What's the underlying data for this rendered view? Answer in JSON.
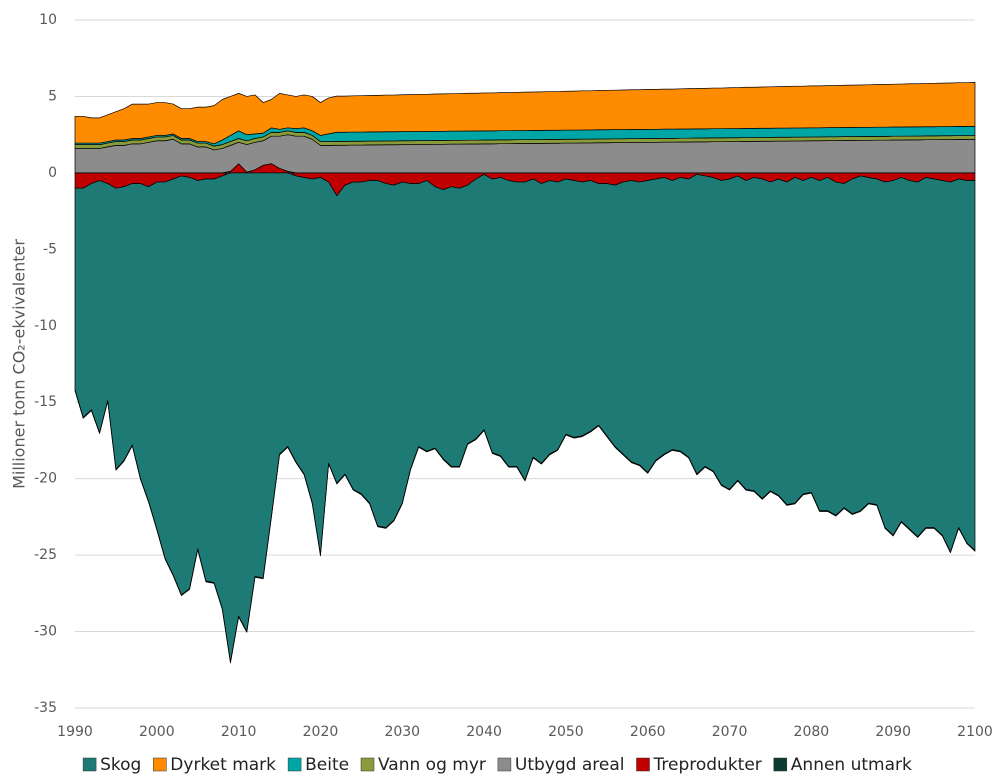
{
  "chart_data": {
    "type": "stacked_area",
    "y_label": "Millioner tonn CO₂-ekvivalenter",
    "x": [
      1990,
      1991,
      1992,
      1993,
      1994,
      1995,
      1996,
      1997,
      1998,
      1999,
      2000,
      2001,
      2002,
      2003,
      2004,
      2005,
      2006,
      2007,
      2008,
      2009,
      2010,
      2011,
      2012,
      2013,
      2014,
      2015,
      2016,
      2017,
      2018,
      2019,
      2020,
      2021,
      2022,
      2023,
      2024,
      2025,
      2026,
      2027,
      2028,
      2029,
      2030,
      2031,
      2032,
      2033,
      2034,
      2035,
      2036,
      2037,
      2038,
      2039,
      2040,
      2041,
      2042,
      2043,
      2044,
      2045,
      2046,
      2047,
      2048,
      2049,
      2050,
      2051,
      2052,
      2053,
      2054,
      2055,
      2056,
      2057,
      2058,
      2059,
      2060,
      2061,
      2062,
      2063,
      2064,
      2065,
      2066,
      2067,
      2068,
      2069,
      2070,
      2071,
      2072,
      2073,
      2074,
      2075,
      2076,
      2077,
      2078,
      2079,
      2080,
      2081,
      2082,
      2083,
      2084,
      2085,
      2086,
      2087,
      2088,
      2089,
      2090,
      2091,
      2092,
      2093,
      2094,
      2095,
      2096,
      2097,
      2098,
      2099,
      2100
    ],
    "xlim": [
      1990,
      2100
    ],
    "xticks": [
      1990,
      2000,
      2010,
      2020,
      2030,
      2040,
      2050,
      2060,
      2070,
      2080,
      2090,
      2100
    ],
    "ylim": [
      -35,
      10
    ],
    "yticks": [
      -35,
      -30,
      -25,
      -20,
      -15,
      -10,
      -5,
      0,
      5,
      10
    ],
    "grid": true,
    "series": [
      {
        "name": "Skog",
        "color": "#1d7a75",
        "values": [
          -13.2,
          -15.0,
          -14.8,
          -16.5,
          -14.2,
          -18.4,
          -17.9,
          -17.1,
          -19.3,
          -20.6,
          -22.7,
          -24.6,
          -25.9,
          -27.4,
          -26.9,
          -24.1,
          -26.3,
          -26.4,
          -28.3,
          -32.0,
          -29.0,
          -30.0,
          -26.4,
          -26.5,
          -22.5,
          -18.4,
          -17.9,
          -18.7,
          -19.4,
          -21.2,
          -24.7,
          -18.4,
          -18.8,
          -18.9,
          -20.1,
          -20.4,
          -21.1,
          -22.6,
          -22.5,
          -21.9,
          -21.0,
          -18.7,
          -17.2,
          -17.7,
          -17.1,
          -17.6,
          -18.3,
          -18.2,
          -16.9,
          -17.0,
          -16.7,
          -17.9,
          -18.2,
          -18.7,
          -18.6,
          -19.5,
          -18.2,
          -18.3,
          -17.9,
          -17.5,
          -16.7,
          -16.8,
          -16.6,
          -16.4,
          -15.8,
          -16.5,
          -17.1,
          -17.8,
          -18.4,
          -18.5,
          -19.1,
          -18.4,
          -18.1,
          -17.6,
          -17.9,
          -18.2,
          -19.6,
          -19.0,
          -19.2,
          -19.9,
          -20.3,
          -19.9,
          -20.2,
          -20.5,
          -20.9,
          -20.2,
          -20.7,
          -21.1,
          -21.3,
          -20.5,
          -20.6,
          -21.6,
          -21.8,
          -21.8,
          -21.2,
          -21.9,
          -21.9,
          -21.3,
          -21.3,
          -22.6,
          -23.2,
          -22.5,
          -22.8,
          -23.2,
          -22.9,
          -22.8,
          -23.2,
          -24.2,
          -22.8,
          -23.7,
          -24.2
        ]
      },
      {
        "name": "Dyrket mark",
        "color": "#ff8b00",
        "values": [
          1.75,
          1.75,
          1.65,
          1.65,
          1.75,
          1.85,
          2.05,
          2.25,
          2.25,
          2.15,
          2.15,
          2.15,
          1.95,
          1.95,
          1.95,
          2.25,
          2.25,
          2.5,
          2.65,
          2.55,
          2.45,
          2.5,
          2.55,
          2.0,
          1.85,
          2.35,
          2.15,
          2.1,
          2.15,
          2.25,
          2.15,
          2.35,
          2.36,
          2.36,
          2.37,
          2.38,
          2.38,
          2.39,
          2.4,
          2.4,
          2.41,
          2.42,
          2.43,
          2.43,
          2.44,
          2.45,
          2.45,
          2.46,
          2.47,
          2.47,
          2.48,
          2.48,
          2.49,
          2.49,
          2.5,
          2.51,
          2.51,
          2.52,
          2.53,
          2.53,
          2.54,
          2.55,
          2.56,
          2.56,
          2.57,
          2.58,
          2.58,
          2.59,
          2.6,
          2.6,
          2.61,
          2.61,
          2.62,
          2.62,
          2.63,
          2.64,
          2.64,
          2.65,
          2.66,
          2.66,
          2.67,
          2.68,
          2.69,
          2.69,
          2.7,
          2.71,
          2.71,
          2.72,
          2.73,
          2.73,
          2.74,
          2.74,
          2.75,
          2.75,
          2.76,
          2.77,
          2.77,
          2.78,
          2.79,
          2.79,
          2.8,
          2.81,
          2.82,
          2.82,
          2.83,
          2.84,
          2.84,
          2.85,
          2.86,
          2.86,
          2.87
        ]
      },
      {
        "name": "Beite",
        "color": "#00a6a6",
        "values": [
          0.1,
          0.1,
          0.1,
          0.1,
          0.1,
          0.1,
          0.1,
          0.1,
          0.1,
          0.1,
          0.1,
          0.1,
          0.1,
          0.1,
          0.1,
          0.1,
          0.1,
          0.15,
          0.3,
          0.4,
          0.5,
          0.4,
          0.3,
          0.25,
          0.3,
          0.2,
          0.2,
          0.25,
          0.3,
          0.3,
          0.4,
          0.5,
          0.6,
          0.6,
          0.6,
          0.6,
          0.6,
          0.6,
          0.6,
          0.6,
          0.6,
          0.6,
          0.6,
          0.6,
          0.6,
          0.6,
          0.6,
          0.6,
          0.6,
          0.6,
          0.6,
          0.6,
          0.6,
          0.6,
          0.6,
          0.6,
          0.6,
          0.6,
          0.6,
          0.6,
          0.6,
          0.6,
          0.6,
          0.6,
          0.6,
          0.6,
          0.6,
          0.6,
          0.6,
          0.6,
          0.6,
          0.6,
          0.6,
          0.6,
          0.6,
          0.6,
          0.6,
          0.6,
          0.6,
          0.6,
          0.6,
          0.6,
          0.6,
          0.6,
          0.6,
          0.6,
          0.6,
          0.6,
          0.6,
          0.6,
          0.6,
          0.6,
          0.6,
          0.6,
          0.6,
          0.6,
          0.6,
          0.6,
          0.6,
          0.6,
          0.6,
          0.6,
          0.6,
          0.6,
          0.6,
          0.6,
          0.6,
          0.6,
          0.6,
          0.6,
          0.6
        ]
      },
      {
        "name": "Vann og myr",
        "color": "#8a9b3b",
        "values": [
          0.25,
          0.25,
          0.25,
          0.25,
          0.25,
          0.25,
          0.25,
          0.25,
          0.25,
          0.25,
          0.25,
          0.25,
          0.25,
          0.25,
          0.25,
          0.25,
          0.25,
          0.25,
          0.25,
          0.25,
          0.25,
          0.25,
          0.25,
          0.25,
          0.25,
          0.25,
          0.25,
          0.25,
          0.25,
          0.25,
          0.25,
          0.25,
          0.25,
          0.25,
          0.25,
          0.25,
          0.25,
          0.25,
          0.25,
          0.25,
          0.25,
          0.25,
          0.25,
          0.25,
          0.25,
          0.25,
          0.25,
          0.25,
          0.25,
          0.25,
          0.25,
          0.25,
          0.25,
          0.25,
          0.25,
          0.25,
          0.25,
          0.25,
          0.25,
          0.25,
          0.25,
          0.25,
          0.25,
          0.25,
          0.25,
          0.25,
          0.25,
          0.25,
          0.25,
          0.25,
          0.25,
          0.25,
          0.25,
          0.25,
          0.25,
          0.25,
          0.25,
          0.25,
          0.25,
          0.25,
          0.25,
          0.25,
          0.25,
          0.25,
          0.25,
          0.25,
          0.25,
          0.25,
          0.25,
          0.25,
          0.25,
          0.25,
          0.25,
          0.25,
          0.25,
          0.25,
          0.25,
          0.25,
          0.25,
          0.25,
          0.25,
          0.25,
          0.25,
          0.25,
          0.25,
          0.25,
          0.25,
          0.25,
          0.25,
          0.25,
          0.25
        ]
      },
      {
        "name": "Utbygd areal",
        "color": "#8c8c8c",
        "values": [
          1.6,
          1.6,
          1.6,
          1.6,
          1.7,
          1.8,
          1.8,
          1.9,
          1.9,
          2.0,
          2.1,
          2.1,
          2.2,
          1.9,
          1.9,
          1.7,
          1.7,
          1.5,
          1.6,
          1.7,
          1.4,
          1.8,
          1.8,
          1.6,
          1.8,
          2.1,
          2.4,
          2.4,
          2.4,
          2.2,
          1.8,
          1.8,
          1.81,
          1.81,
          1.82,
          1.82,
          1.83,
          1.83,
          1.84,
          1.84,
          1.85,
          1.85,
          1.86,
          1.86,
          1.87,
          1.87,
          1.88,
          1.88,
          1.89,
          1.89,
          1.9,
          1.9,
          1.91,
          1.91,
          1.92,
          1.92,
          1.93,
          1.93,
          1.94,
          1.94,
          1.95,
          1.95,
          1.96,
          1.96,
          1.97,
          1.97,
          1.98,
          1.98,
          1.99,
          1.99,
          2.0,
          2.0,
          2.01,
          2.01,
          2.02,
          2.02,
          2.03,
          2.03,
          2.04,
          2.04,
          2.05,
          2.05,
          2.06,
          2.06,
          2.07,
          2.07,
          2.08,
          2.08,
          2.09,
          2.09,
          2.1,
          2.1,
          2.11,
          2.11,
          2.12,
          2.12,
          2.13,
          2.13,
          2.14,
          2.14,
          2.15,
          2.15,
          2.16,
          2.16,
          2.17,
          2.17,
          2.18,
          2.18,
          2.19,
          2.19,
          2.2
        ]
      },
      {
        "name": "Treprodukter",
        "color": "#c00000",
        "values": [
          -1.0,
          -1.0,
          -0.7,
          -0.5,
          -0.7,
          -1.0,
          -0.9,
          -0.7,
          -0.7,
          -0.9,
          -0.6,
          -0.6,
          -0.4,
          -0.2,
          -0.3,
          -0.5,
          -0.4,
          -0.4,
          -0.2,
          0.1,
          0.6,
          0.05,
          0.2,
          0.5,
          0.6,
          0.3,
          0.1,
          -0.2,
          -0.3,
          -0.4,
          -0.3,
          -0.6,
          -1.5,
          -0.8,
          -0.6,
          -0.6,
          -0.5,
          -0.5,
          -0.7,
          -0.8,
          -0.6,
          -0.7,
          -0.7,
          -0.5,
          -0.9,
          -1.1,
          -0.9,
          -1.0,
          -0.8,
          -0.4,
          -0.1,
          -0.4,
          -0.3,
          -0.5,
          -0.6,
          -0.6,
          -0.4,
          -0.7,
          -0.5,
          -0.6,
          -0.4,
          -0.5,
          -0.6,
          -0.5,
          -0.7,
          -0.7,
          -0.8,
          -0.6,
          -0.5,
          -0.6,
          -0.5,
          -0.4,
          -0.3,
          -0.5,
          -0.3,
          -0.4,
          -0.1,
          -0.2,
          -0.3,
          -0.5,
          -0.4,
          -0.2,
          -0.5,
          -0.3,
          -0.4,
          -0.6,
          -0.4,
          -0.6,
          -0.3,
          -0.5,
          -0.3,
          -0.5,
          -0.3,
          -0.6,
          -0.7,
          -0.4,
          -0.2,
          -0.3,
          -0.4,
          -0.6,
          -0.5,
          -0.3,
          -0.5,
          -0.6,
          -0.3,
          -0.4,
          -0.5,
          -0.6,
          -0.4,
          -0.5,
          -0.5
        ]
      },
      {
        "name": "Annen utmark",
        "color": "#0b3b32",
        "values": [
          -0.05,
          -0.05,
          -0.05,
          -0.05,
          -0.05,
          -0.05,
          -0.05,
          -0.05,
          -0.05,
          -0.05,
          -0.05,
          -0.05,
          -0.05,
          -0.05,
          -0.05,
          -0.05,
          -0.05,
          -0.05,
          -0.05,
          -0.05,
          -0.05,
          -0.05,
          -0.05,
          -0.05,
          -0.05,
          -0.05,
          -0.05,
          -0.05,
          -0.05,
          -0.05,
          -0.05,
          -0.05,
          -0.05,
          -0.05,
          -0.05,
          -0.05,
          -0.05,
          -0.05,
          -0.05,
          -0.05,
          -0.05,
          -0.05,
          -0.05,
          -0.05,
          -0.05,
          -0.05,
          -0.05,
          -0.05,
          -0.05,
          -0.05,
          -0.05,
          -0.05,
          -0.05,
          -0.05,
          -0.05,
          -0.05,
          -0.05,
          -0.05,
          -0.05,
          -0.05,
          -0.05,
          -0.05,
          -0.05,
          -0.05,
          -0.05,
          -0.05,
          -0.05,
          -0.05,
          -0.05,
          -0.05,
          -0.05,
          -0.05,
          -0.05,
          -0.05,
          -0.05,
          -0.05,
          -0.05,
          -0.05,
          -0.05,
          -0.05,
          -0.05,
          -0.05,
          -0.05,
          -0.05,
          -0.05,
          -0.05,
          -0.05,
          -0.05,
          -0.05,
          -0.05,
          -0.05,
          -0.05,
          -0.05,
          -0.05,
          -0.05,
          -0.05,
          -0.05,
          -0.05,
          -0.05,
          -0.05,
          -0.05,
          -0.05,
          -0.05,
          -0.05,
          -0.05,
          -0.05,
          -0.05,
          -0.05,
          -0.05,
          -0.05,
          -0.05
        ]
      }
    ]
  }
}
